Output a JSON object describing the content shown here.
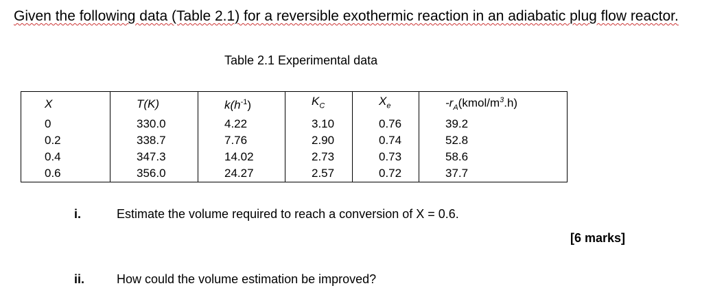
{
  "intro": "Given the following data (Table 2.1) for a reversible exothermic reaction in an adiabatic plug flow reactor.",
  "table": {
    "caption": "Table 2.1 Experimental data",
    "header": [
      [
        "X"
      ],
      [
        "T(K)"
      ],
      [
        "k(h",
        "-1",
        ")"
      ],
      [
        "K",
        "C"
      ],
      [
        "X",
        "e"
      ],
      [
        "-r",
        "A",
        "(kmol/m",
        "3",
        ".h)"
      ]
    ],
    "rows": [
      [
        "0",
        "330.0",
        "4.22",
        "3.10",
        "0.76",
        "39.2"
      ],
      [
        "0.2",
        "338.7",
        "7.76",
        "2.90",
        "0.74",
        "52.8"
      ],
      [
        "0.4",
        "347.3",
        "14.02",
        "2.73",
        "0.73",
        "58.6"
      ],
      [
        "0.6",
        "356.0",
        "24.27",
        "2.57",
        "0.72",
        "37.7"
      ]
    ]
  },
  "questions": [
    {
      "number": "i.",
      "text": "Estimate the volume required to reach a conversion of X = 0.6.",
      "marks": "[6 marks]"
    },
    {
      "number": "ii.",
      "text": "How could the volume estimation be improved?"
    }
  ]
}
